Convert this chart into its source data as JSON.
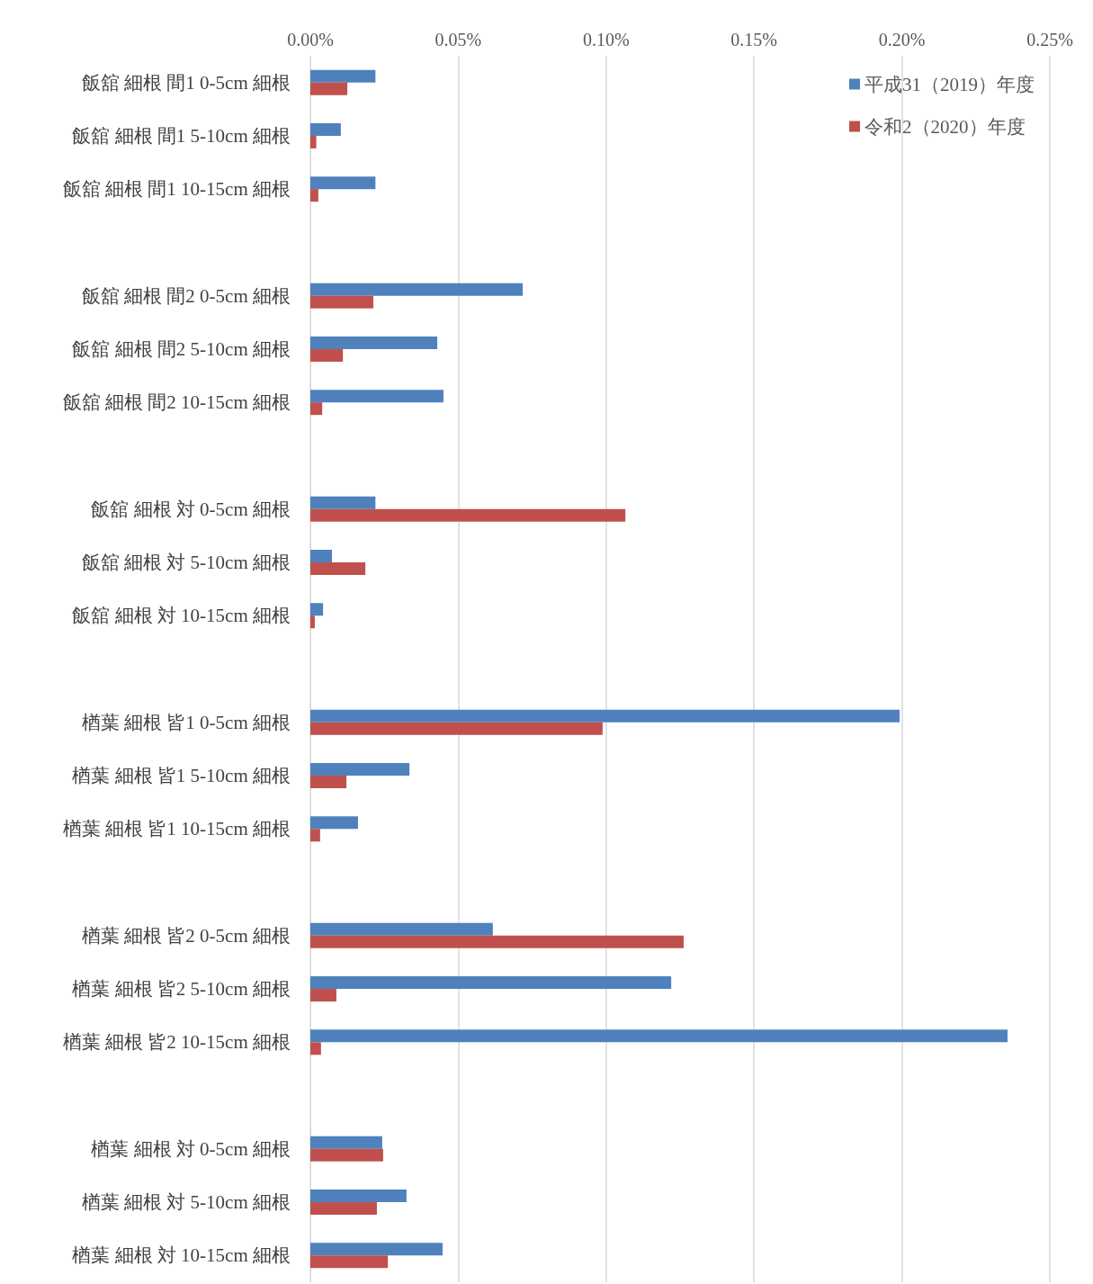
{
  "chart_data": {
    "type": "bar",
    "orientation": "horizontal",
    "categories": [
      "飯舘 細根 間1 0-5cm 細根",
      "飯舘 細根 間1 5-10cm 細根",
      "飯舘 細根 間1 10-15cm 細根",
      null,
      "飯舘 細根 間2 0-5cm 細根",
      "飯舘 細根 間2 5-10cm 細根",
      "飯舘 細根 間2 10-15cm 細根",
      null,
      "飯舘 細根 対 0-5cm 細根",
      "飯舘 細根 対 5-10cm 細根",
      "飯舘 細根 対 10-15cm 細根",
      null,
      "楢葉 細根 皆1 0-5cm 細根",
      "楢葉 細根 皆1 5-10cm 細根",
      "楢葉 細根 皆1 10-15cm 細根",
      null,
      "楢葉 細根 皆2 0-5cm 細根",
      "楢葉 細根 皆2 5-10cm 細根",
      "楢葉 細根 皆2 10-15cm 細根",
      null,
      "楢葉 細根 対 0-5cm 細根",
      "楢葉 細根 対 5-10cm 細根",
      "楢葉 細根 対 10-15cm 細根"
    ],
    "series": [
      {
        "name": "平成31（2019）年度",
        "color": "#4f81bd",
        "values": [
          0.022,
          0.0103,
          0.022,
          null,
          0.0718,
          0.0429,
          0.045,
          null,
          0.022,
          0.0073,
          0.0043,
          null,
          0.1992,
          0.0335,
          0.0161,
          null,
          0.0617,
          0.122,
          0.2357,
          null,
          0.0243,
          0.0325,
          0.0447
        ]
      },
      {
        "name": "令和2（2020）年度",
        "color": "#c0504d",
        "values": [
          0.0125,
          0.002,
          0.0027,
          null,
          0.0213,
          0.011,
          0.004,
          null,
          0.1065,
          0.0186,
          0.0015,
          null,
          0.0988,
          0.0122,
          0.0033,
          null,
          0.1262,
          0.0088,
          0.0036,
          null,
          0.0246,
          0.0225,
          0.0262
        ]
      }
    ],
    "xlim": [
      0,
      0.25
    ],
    "xticks": [
      {
        "value": 0,
        "label": "0.00%"
      },
      {
        "value": 0.05,
        "label": "0.05%"
      },
      {
        "value": 0.1,
        "label": "0.10%"
      },
      {
        "value": 0.15,
        "label": "0.15%"
      },
      {
        "value": 0.2,
        "label": "0.20%"
      },
      {
        "value": 0.25,
        "label": "0.25%"
      }
    ],
    "grid": "x",
    "legend": "top right"
  }
}
